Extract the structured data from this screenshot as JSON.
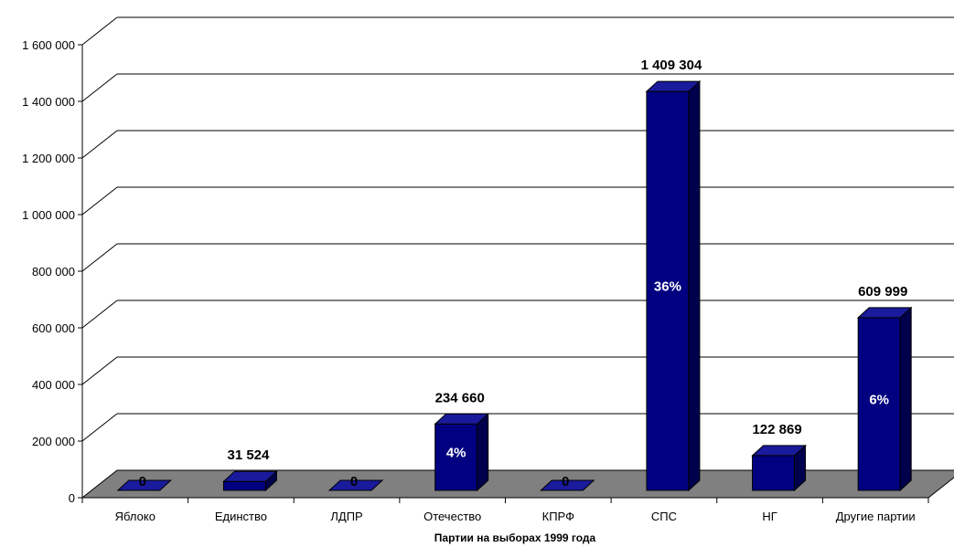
{
  "chart_data": {
    "type": "bar",
    "style": "3d",
    "categories": [
      "Яблоко",
      "Единство",
      "ЛДПР",
      "Отечество",
      "КПРФ",
      "СПС",
      "НГ",
      "Другие партии"
    ],
    "values": [
      0,
      31524,
      0,
      234660,
      0,
      1409304,
      122869,
      609999
    ],
    "value_labels": [
      "0",
      "31 524",
      "0",
      "234 660",
      "0",
      "1 409 304",
      "122 869",
      "609 999"
    ],
    "percent_labels": [
      "",
      "",
      "",
      "4%",
      "",
      "36%",
      "",
      "6%"
    ],
    "xlabel": "Партии на выборах 1999 года",
    "ylabel": "",
    "ylim": [
      0,
      1600000
    ],
    "yticks": [
      0,
      200000,
      400000,
      600000,
      800000,
      1000000,
      1200000,
      1400000,
      1600000
    ],
    "ytick_labels": [
      "0",
      "200 000",
      "400 000",
      "600 000",
      "800 000",
      "1 000 000",
      "1 200 000",
      "1 400 000",
      "1 600 000"
    ],
    "grid": true,
    "legend": "none",
    "colors": {
      "bar": "#000080",
      "bar_top": "#1a1a9c",
      "bar_side": "#00004d",
      "floor": "#808080"
    }
  }
}
